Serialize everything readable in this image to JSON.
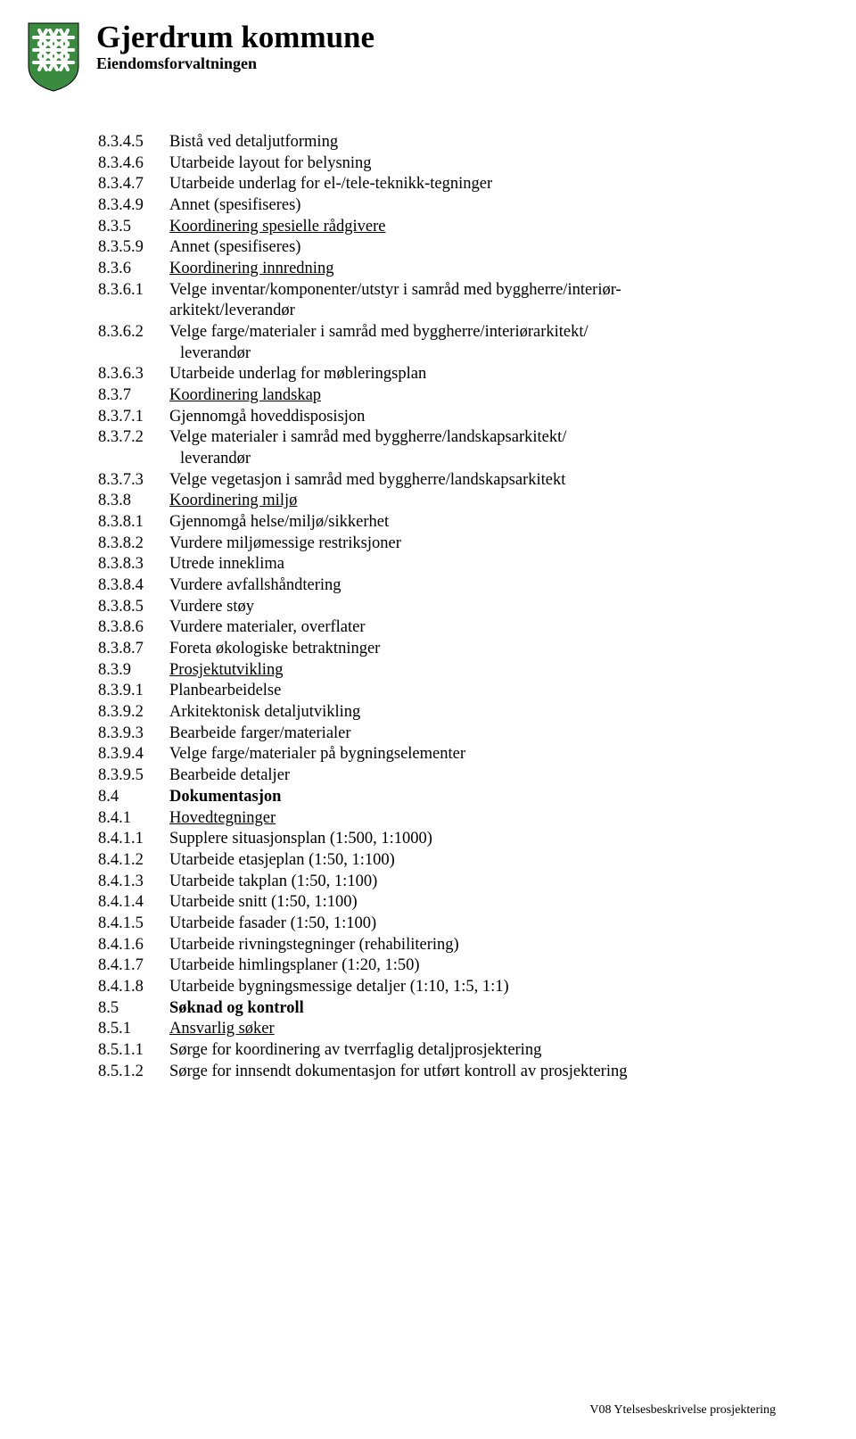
{
  "header": {
    "title": "Gjerdrum kommune",
    "subtitle": "Eiendomsforvaltningen",
    "shield_color": "#3a8a3f",
    "shield_stripe_color": "#ffffff"
  },
  "footer": "V08 Ytelsesbeskrivelse prosjektering",
  "items": [
    {
      "num": "8.3.4.5",
      "text": "Bistå ved detaljutforming"
    },
    {
      "num": "8.3.4.6",
      "text": "Utarbeide layout for belysning"
    },
    {
      "num": "8.3.4.7",
      "text": "Utarbeide underlag for el-/tele-teknikk-tegninger"
    },
    {
      "num": "8.3.4.9",
      "text": "Annet (spesifiseres)"
    },
    {
      "num": "8.3.5",
      "text": "Koordinering spesielle rådgivere",
      "underline": true
    },
    {
      "num": "8.3.5.9",
      "text": "Annet (spesifiseres)"
    },
    {
      "num": "8.3.6",
      "text": "Koordinering innredning",
      "underline": true
    },
    {
      "num": "8.3.6.1",
      "text": "Velge inventar/komponenter/utstyr i samråd med byggherre/interiør-",
      "continuation": "arkitekt/leverandør"
    },
    {
      "num": "8.3.6.2",
      "text": "Velge farge/materialer i samråd med byggherre/interiørarkitekt/",
      "continuation": "leverandør",
      "indent_cont": true
    },
    {
      "num": "8.3.6.3",
      "text": "Utarbeide underlag for møbleringsplan"
    },
    {
      "num": "8.3.7",
      "text": "Koordinering landskap",
      "underline": true
    },
    {
      "num": "8.3.7.1",
      "text": "Gjennomgå hoveddisposisjon"
    },
    {
      "num": "8.3.7.2",
      "text": "Velge materialer i samråd med byggherre/landskapsarkitekt/",
      "continuation": "leverandør",
      "indent_cont": true
    },
    {
      "num": "8.3.7.3",
      "text": "Velge vegetasjon i samråd med  byggherre/landskapsarkitekt"
    },
    {
      "num": "8.3.8",
      "text": "Koordinering miljø",
      "underline": true
    },
    {
      "num": "8.3.8.1",
      "text": "Gjennomgå helse/miljø/sikkerhet"
    },
    {
      "num": "8.3.8.2",
      "text": "Vurdere miljømessige restriksjoner"
    },
    {
      "num": "8.3.8.3",
      "text": "Utrede inneklima"
    },
    {
      "num": "8.3.8.4",
      "text": "Vurdere avfallshåndtering"
    },
    {
      "num": "8.3.8.5",
      "text": "Vurdere støy"
    },
    {
      "num": "8.3.8.6",
      "text": "Vurdere materialer, overflater"
    },
    {
      "num": "8.3.8.7",
      "text": "Foreta økologiske betraktninger"
    },
    {
      "num": "8.3.9",
      "text": "Prosjektutvikling",
      "underline": true
    },
    {
      "num": "8.3.9.1",
      "text": "Planbearbeidelse"
    },
    {
      "num": "8.3.9.2",
      "text": "Arkitektonisk detaljutvikling"
    },
    {
      "num": "8.3.9.3",
      "text": "Bearbeide farger/materialer"
    },
    {
      "num": "8.3.9.4",
      "text": "Velge farge/materialer på bygningselementer"
    },
    {
      "num": "8.3.9.5",
      "text": "Bearbeide detaljer"
    },
    {
      "num": "8.4",
      "text": "Dokumentasjon",
      "bold": true
    },
    {
      "num": "8.4.1",
      "text": "Hovedtegninger",
      "underline": true
    },
    {
      "num": "8.4.1.1",
      "text": "Supplere situasjonsplan (1:500, 1:1000)"
    },
    {
      "num": "8.4.1.2",
      "text": "Utarbeide etasjeplan (1:50, 1:100)"
    },
    {
      "num": "8.4.1.3",
      "text": "Utarbeide takplan (1:50, 1:100)"
    },
    {
      "num": "8.4.1.4",
      "text": "Utarbeide snitt (1:50, 1:100)"
    },
    {
      "num": "8.4.1.5",
      "text": "Utarbeide fasader (1:50, 1:100)"
    },
    {
      "num": "8.4.1.6",
      "text": "Utarbeide rivningstegninger (rehabilitering)"
    },
    {
      "num": "8.4.1.7",
      "text": "Utarbeide himlingsplaner (1:20, 1:50)"
    },
    {
      "num": "8.4.1.8",
      "text": "Utarbeide bygningsmessige detaljer (1:10, 1:5, 1:1)"
    },
    {
      "num": "8.5",
      "text": "Søknad og kontroll",
      "bold": true
    },
    {
      "num": "8.5.1",
      "text": "Ansvarlig søker",
      "underline": true
    },
    {
      "num": "8.5.1.1",
      "text": "Sørge for koordinering av tverrfaglig detaljprosjektering"
    },
    {
      "num": "8.5.1.2",
      "text": "Sørge for innsendt dokumentasjon for utført kontroll av prosjektering"
    }
  ]
}
